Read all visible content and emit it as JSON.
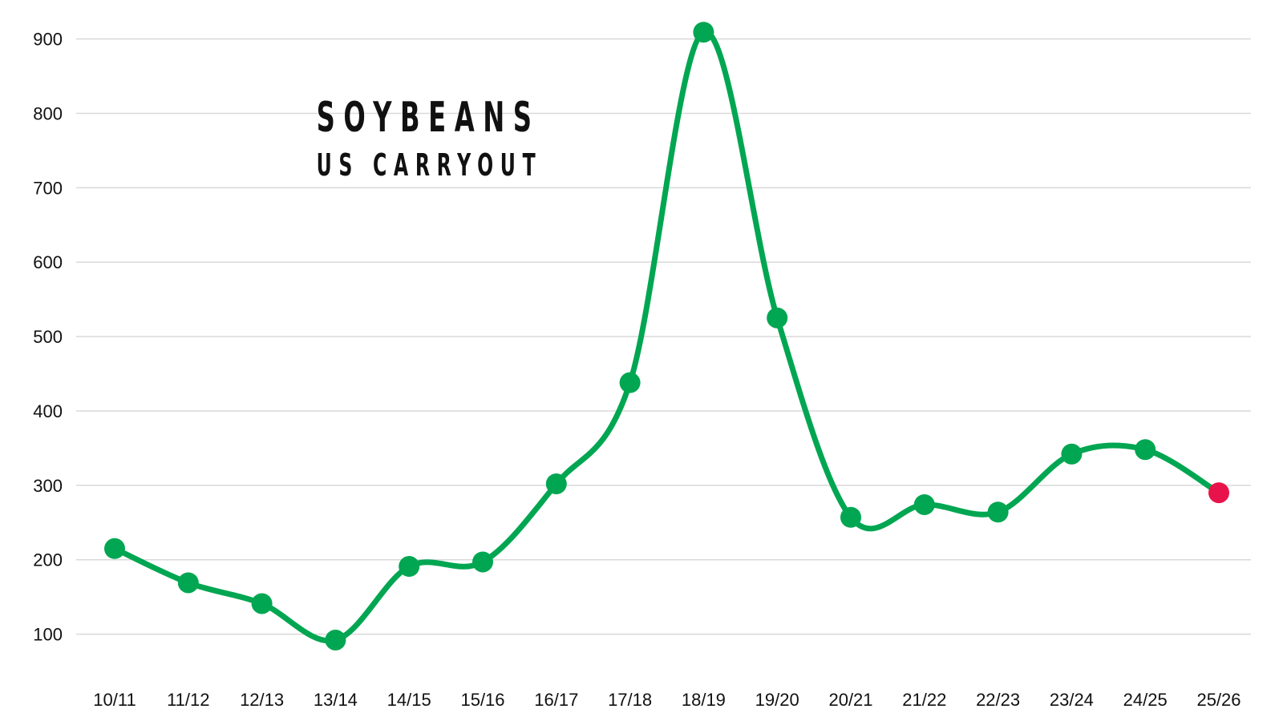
{
  "chart_data": {
    "type": "line",
    "title": "SOYBEANS",
    "subtitle": "US CARRYOUT",
    "xlabel": "",
    "ylabel": "",
    "categories": [
      "10/11",
      "11/12",
      "12/13",
      "13/14",
      "14/15",
      "15/16",
      "16/17",
      "17/18",
      "18/19",
      "19/20",
      "20/21",
      "21/22",
      "22/23",
      "23/24",
      "24/25",
      "25/26"
    ],
    "series": [
      {
        "values": [
          215,
          169,
          141,
          92,
          191,
          197,
          302,
          438,
          909,
          525,
          257,
          274,
          264,
          342,
          348,
          290
        ]
      }
    ],
    "ylim": [
      50,
      920
    ],
    "yticks": [
      100,
      200,
      300,
      400,
      500,
      600,
      700,
      800,
      900
    ],
    "grid": true,
    "legend": "none",
    "colors": {
      "line": "#00a651",
      "marker": "#00a651",
      "last_marker": "#e8134a",
      "grid": "#d9d9d9",
      "text": "#111111"
    }
  }
}
